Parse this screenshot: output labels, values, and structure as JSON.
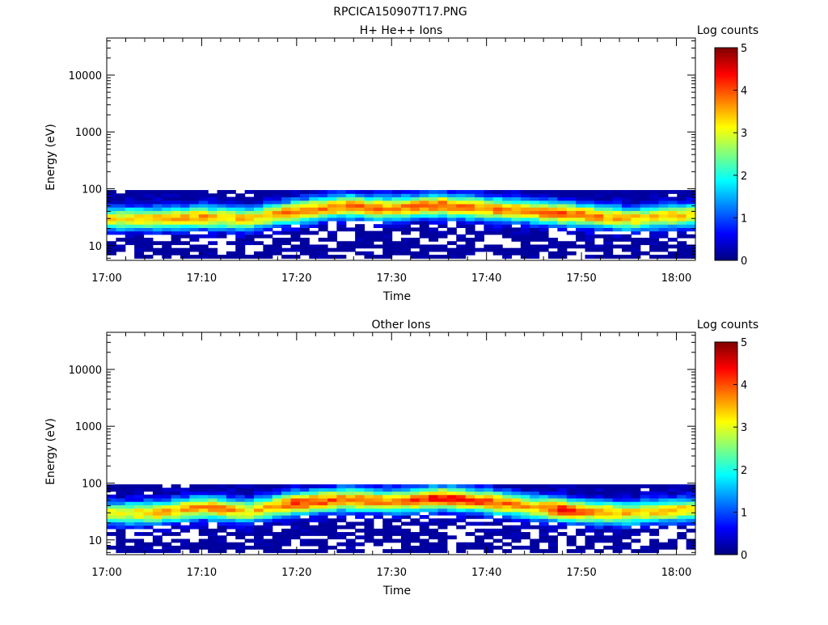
{
  "figure_title": "RPCICA150907T17.PNG",
  "chart_data": [
    {
      "type": "heatmap",
      "title": "H+ He++ Ions",
      "xlabel": "Time",
      "ylabel": "Energy (eV)",
      "x_ticks": [
        "17:00",
        "17:10",
        "17:20",
        "17:30",
        "17:40",
        "17:50",
        "18:00"
      ],
      "x_range": [
        "17:00",
        "18:02"
      ],
      "y_scale": "log",
      "y_ticks": [
        10,
        100,
        1000,
        10000
      ],
      "y_tick_labels": [
        "10",
        "100",
        "1000",
        "10000"
      ],
      "y_range": [
        5.5,
        45000
      ],
      "colorbar": {
        "label": "Log counts",
        "range": [
          0,
          5
        ],
        "ticks": [
          "0",
          "1",
          "2",
          "3",
          "4",
          "5"
        ],
        "colormap": [
          "#00007f",
          "#0000ff",
          "#007fff",
          "#00ffff",
          "#7fff7f",
          "#ffff00",
          "#ff7f00",
          "#ff0000",
          "#7f0000"
        ]
      },
      "time_peak_energy_eV": [
        [
          "17:00",
          30
        ],
        [
          "17:05",
          30
        ],
        [
          "17:10",
          32
        ],
        [
          "17:15",
          30
        ],
        [
          "17:20",
          40
        ],
        [
          "17:25",
          50
        ],
        [
          "17:30",
          45
        ],
        [
          "17:35",
          52
        ],
        [
          "17:40",
          45
        ],
        [
          "17:45",
          40
        ],
        [
          "17:50",
          35
        ],
        [
          "17:55",
          30
        ],
        [
          "18:02",
          35
        ]
      ],
      "time_peak_log_counts": [
        [
          "17:00",
          3.2
        ],
        [
          "17:05",
          3.4
        ],
        [
          "17:10",
          3.6
        ],
        [
          "17:15",
          3.3
        ],
        [
          "17:20",
          3.8
        ],
        [
          "17:25",
          3.9
        ],
        [
          "17:30",
          3.7
        ],
        [
          "17:35",
          4.0
        ],
        [
          "17:40",
          3.8
        ],
        [
          "17:45",
          3.6
        ],
        [
          "17:48",
          4.1
        ],
        [
          "17:50",
          3.8
        ],
        [
          "17:55",
          3.4
        ],
        [
          "18:02",
          3.4
        ]
      ],
      "energy_band_eV": [
        6,
        95
      ]
    },
    {
      "type": "heatmap",
      "title": "Other Ions",
      "xlabel": "Time",
      "ylabel": "Energy (eV)",
      "x_ticks": [
        "17:00",
        "17:10",
        "17:20",
        "17:30",
        "17:40",
        "17:50",
        "18:00"
      ],
      "x_range": [
        "17:00",
        "18:02"
      ],
      "y_scale": "log",
      "y_ticks": [
        10,
        100,
        1000,
        10000
      ],
      "y_tick_labels": [
        "10",
        "100",
        "1000",
        "10000"
      ],
      "y_range": [
        5.5,
        45000
      ],
      "colorbar": {
        "label": "Log counts",
        "range": [
          0,
          5
        ],
        "ticks": [
          "0",
          "1",
          "2",
          "3",
          "4",
          "5"
        ],
        "colormap": [
          "#00007f",
          "#0000ff",
          "#007fff",
          "#00ffff",
          "#7fff7f",
          "#ffff00",
          "#ff7f00",
          "#ff0000",
          "#7f0000"
        ]
      },
      "time_peak_energy_eV": [
        [
          "17:00",
          30
        ],
        [
          "17:05",
          30
        ],
        [
          "17:10",
          38
        ],
        [
          "17:15",
          32
        ],
        [
          "17:20",
          45
        ],
        [
          "17:25",
          52
        ],
        [
          "17:30",
          48
        ],
        [
          "17:35",
          55
        ],
        [
          "17:40",
          48
        ],
        [
          "17:45",
          38
        ],
        [
          "17:50",
          32
        ],
        [
          "17:55",
          30
        ],
        [
          "18:02",
          35
        ]
      ],
      "time_peak_log_counts": [
        [
          "17:00",
          3.0
        ],
        [
          "17:05",
          3.4
        ],
        [
          "17:12",
          3.8
        ],
        [
          "17:15",
          3.2
        ],
        [
          "17:20",
          4.1
        ],
        [
          "17:25",
          3.9
        ],
        [
          "17:30",
          3.7
        ],
        [
          "17:35",
          4.4
        ],
        [
          "17:40",
          4.0
        ],
        [
          "17:45",
          3.6
        ],
        [
          "17:48",
          4.3
        ],
        [
          "17:50",
          3.8
        ],
        [
          "17:55",
          3.4
        ],
        [
          "18:02",
          3.4
        ]
      ],
      "energy_band_eV": [
        6,
        95
      ]
    }
  ]
}
